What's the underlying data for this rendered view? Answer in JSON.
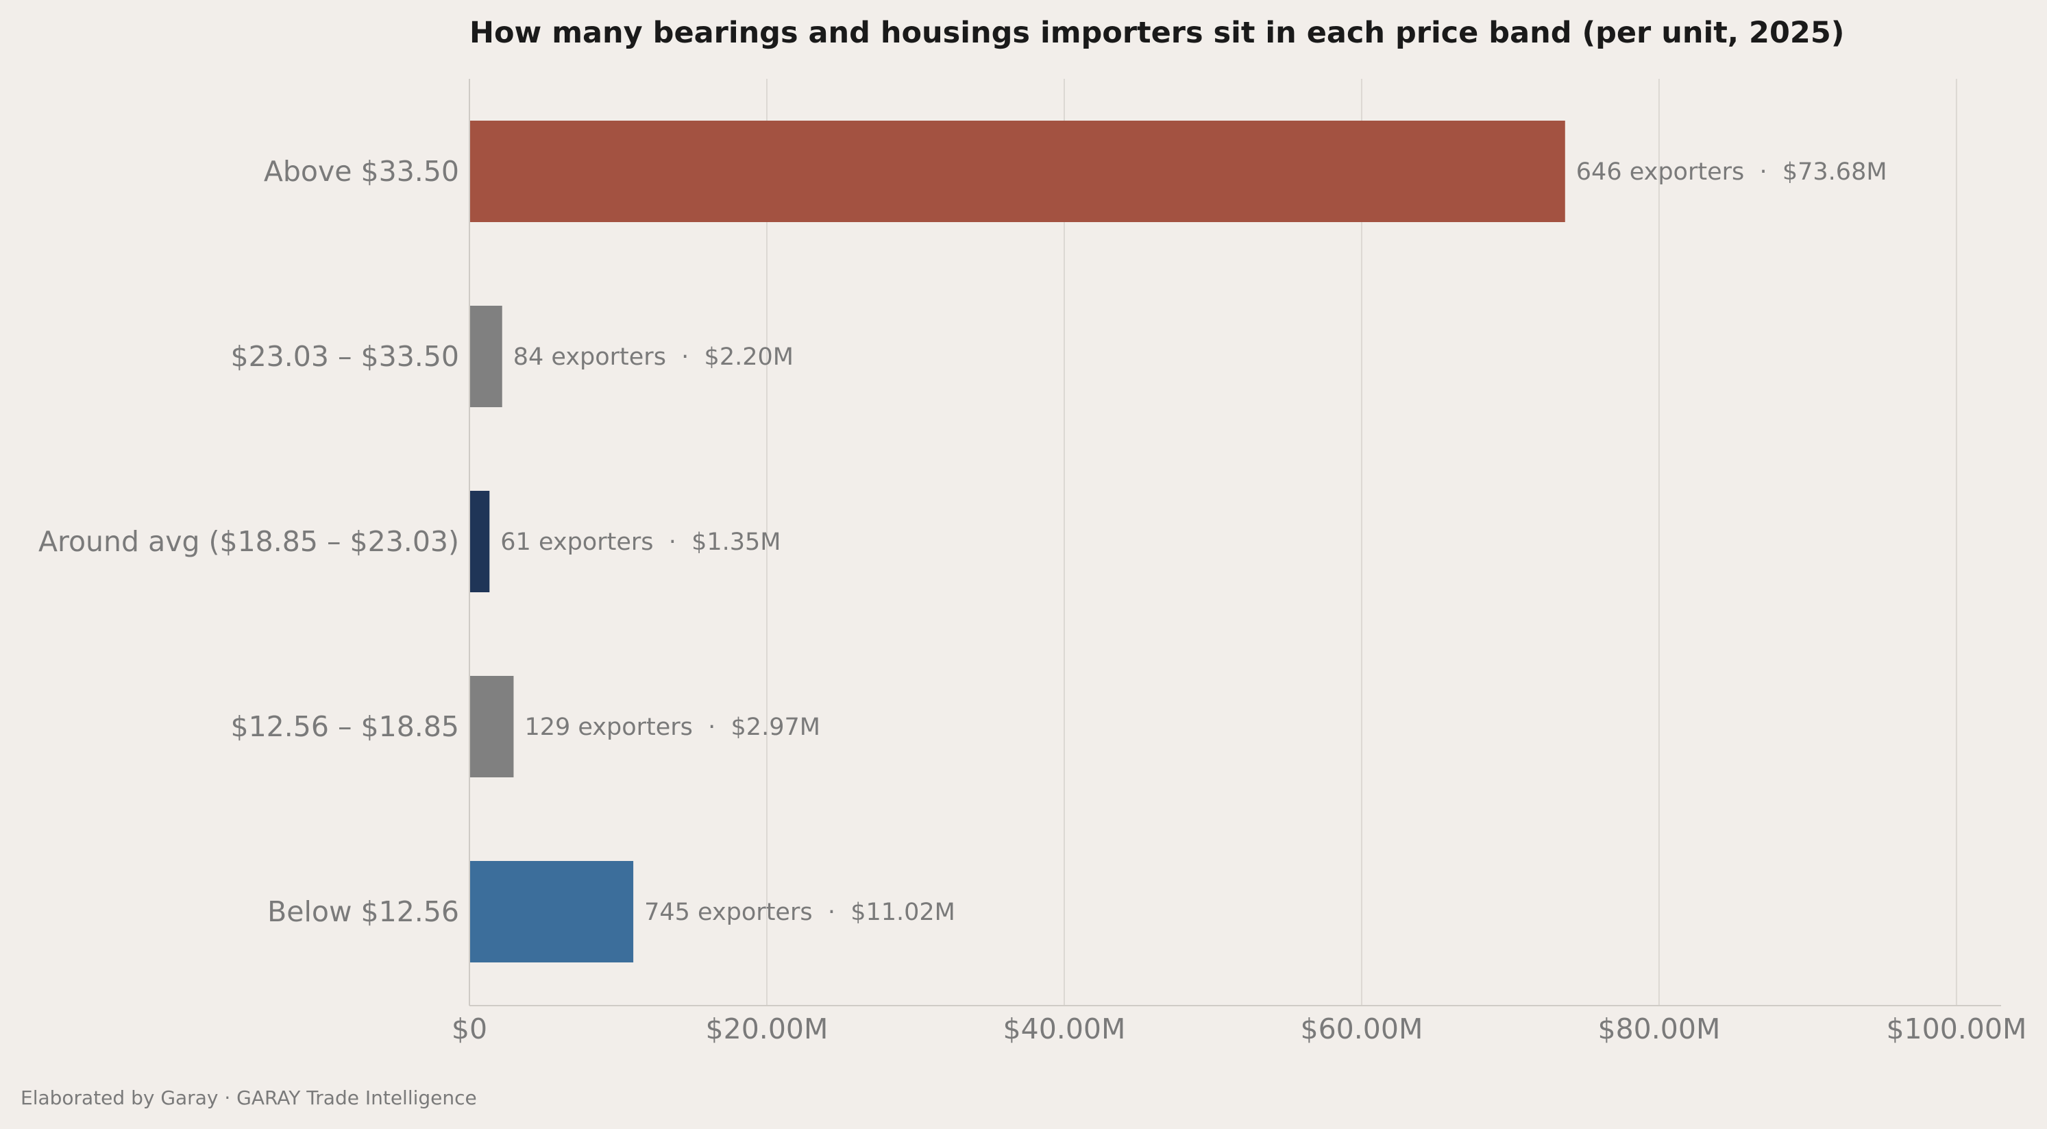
{
  "chart_data": {
    "type": "bar",
    "orientation": "horizontal",
    "title": "How many bearings and housings importers sit in each price band (per unit, 2025)",
    "xlabel": "",
    "ylabel": "",
    "xlim": [
      0,
      103
    ],
    "grid": "vertical",
    "x_ticks": [
      {
        "value": 0,
        "label": "$0"
      },
      {
        "value": 20,
        "label": "$20.00M"
      },
      {
        "value": 40,
        "label": "$40.00M"
      },
      {
        "value": 60,
        "label": "$60.00M"
      },
      {
        "value": 80,
        "label": "$80.00M"
      },
      {
        "value": 100,
        "label": "$100.00M"
      }
    ],
    "bars": [
      {
        "category": "Above $33.50",
        "value": 73.68,
        "exporters": 646,
        "label": "646 exporters  ·  $73.68M",
        "color": "#a35241"
      },
      {
        "category": "$23.03 – $33.50",
        "value": 2.2,
        "exporters": 84,
        "label": "84 exporters  ·  $2.20M",
        "color": "#808080"
      },
      {
        "category": "Around avg ($18.85 – $23.03)",
        "value": 1.35,
        "exporters": 61,
        "label": "61 exporters  ·  $1.35M",
        "color": "#1f3557"
      },
      {
        "category": "$12.56 – $18.85",
        "value": 2.97,
        "exporters": 129,
        "label": "129 exporters  ·  $2.97M",
        "color": "#808080"
      },
      {
        "category": "Below $12.56",
        "value": 11.02,
        "exporters": 745,
        "label": "745 exporters  ·  $11.02M",
        "color": "#3c6e9b"
      }
    ]
  },
  "footer": {
    "text": "Elaborated by Garay  ·  GARAY Trade Intelligence"
  }
}
